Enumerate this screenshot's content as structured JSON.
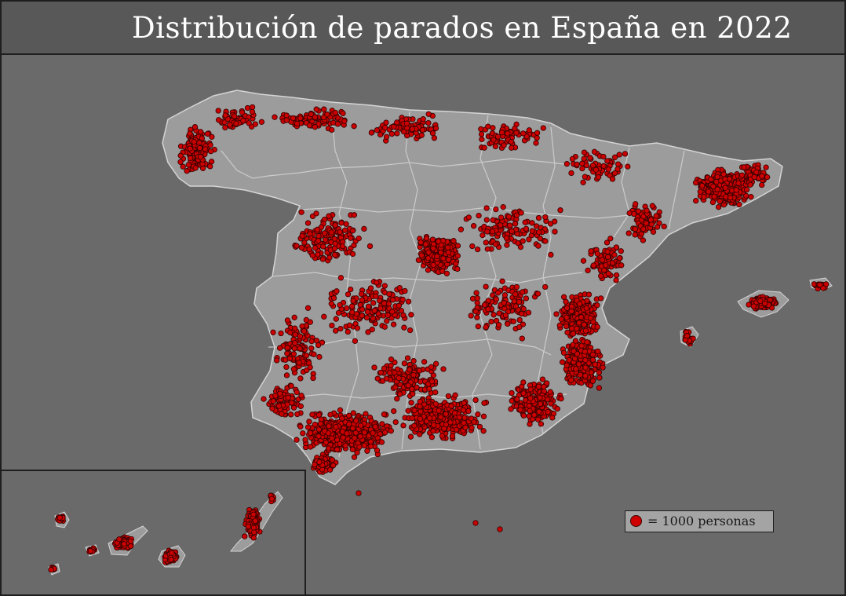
{
  "title": "Distribución de parados en España en 2022",
  "legend": {
    "text": "= 1000 personas"
  },
  "colors": {
    "background": "#6a6a6a",
    "title_bar": "#585858",
    "land": "#9c9c9c",
    "borders": "#d4d4d4",
    "dot_fill": "#cc0000",
    "dot_stroke": "#3a0000",
    "legend_bg": "#a4a4a4"
  },
  "symbol": {
    "shape": "circle",
    "meaning": "1000 personas"
  }
}
